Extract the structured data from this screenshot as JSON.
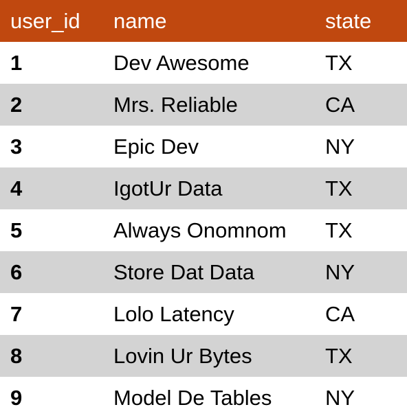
{
  "table": {
    "header_color": "#c0480f",
    "stripe_color": "#d3d3d3",
    "columns": [
      "user_id",
      "name",
      "state"
    ],
    "rows": [
      {
        "user_id": "1",
        "name": "Dev Awesome",
        "state": "TX"
      },
      {
        "user_id": "2",
        "name": "Mrs. Reliable",
        "state": "CA"
      },
      {
        "user_id": "3",
        "name": "Epic Dev",
        "state": "NY"
      },
      {
        "user_id": "4",
        "name": "IgotUr Data",
        "state": "TX"
      },
      {
        "user_id": "5",
        "name": "Always Onomnom",
        "state": "TX"
      },
      {
        "user_id": "6",
        "name": "Store Dat Data",
        "state": "NY"
      },
      {
        "user_id": "7",
        "name": "Lolo Latency",
        "state": "CA"
      },
      {
        "user_id": "8",
        "name": "Lovin Ur Bytes",
        "state": "TX"
      },
      {
        "user_id": "9",
        "name": "Model De Tables",
        "state": "NY"
      }
    ]
  }
}
